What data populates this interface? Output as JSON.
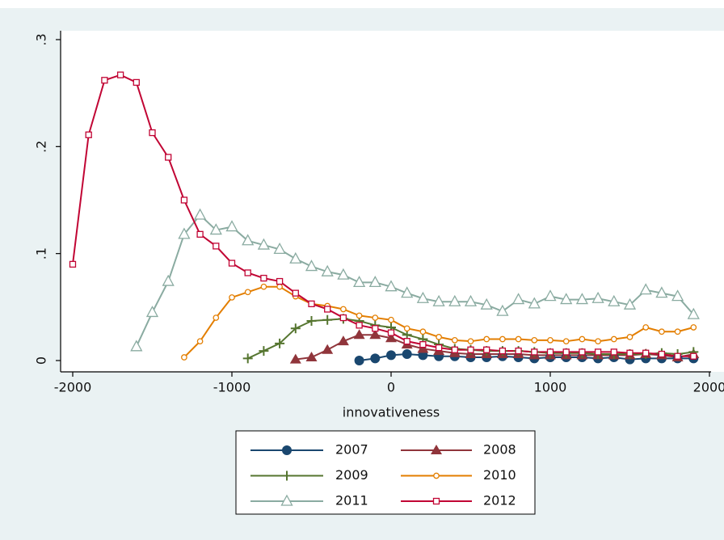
{
  "chart_data": {
    "type": "line",
    "x_label": "innovativeness",
    "xlim": [
      -2000,
      2000
    ],
    "ylim": [
      0,
      0.3
    ],
    "xticks": [
      -2000,
      -1000,
      0,
      1000,
      2000
    ],
    "yticks": [
      0,
      {
        "value": 0.1,
        "label": ".1"
      },
      {
        "value": 0.2,
        "label": ".2"
      },
      {
        "value": 0.3,
        "label": ".3"
      }
    ],
    "grid": false,
    "legend": "bottom",
    "x": [
      -2000,
      -1900,
      -1800,
      -1700,
      -1600,
      -1500,
      -1400,
      -1300,
      -1200,
      -1100,
      -1000,
      -900,
      -800,
      -700,
      -600,
      -500,
      -400,
      -300,
      -200,
      -100,
      0,
      100,
      200,
      300,
      400,
      500,
      600,
      700,
      800,
      900,
      1000,
      1100,
      1200,
      1300,
      1400,
      1500,
      1600,
      1700,
      1800,
      1900
    ],
    "series": [
      {
        "name": "2007",
        "color": "#1a476f",
        "marker": "circle",
        "values": [
          null,
          null,
          null,
          null,
          null,
          null,
          null,
          null,
          null,
          null,
          null,
          null,
          null,
          null,
          null,
          null,
          null,
          null,
          0.0,
          0.002,
          0.005,
          0.006,
          0.005,
          0.004,
          0.004,
          0.003,
          0.003,
          0.004,
          0.003,
          0.002,
          0.003,
          0.003,
          0.003,
          0.002,
          0.003,
          0.001,
          0.002,
          0.002,
          0.002,
          0.002
        ]
      },
      {
        "name": "2008",
        "color": "#90353b",
        "marker": "triangle",
        "values": [
          null,
          null,
          null,
          null,
          null,
          null,
          null,
          null,
          null,
          null,
          null,
          null,
          null,
          null,
          0.001,
          0.003,
          0.01,
          0.018,
          0.024,
          0.024,
          0.021,
          0.015,
          0.011,
          0.009,
          0.007,
          0.006,
          0.006,
          0.006,
          0.006,
          0.005,
          0.005,
          0.005,
          0.005,
          0.005,
          0.005,
          0.005,
          0.006,
          0.005,
          0.003,
          0.006
        ]
      },
      {
        "name": "2009",
        "color": "#55752f",
        "marker": "plus",
        "values": [
          null,
          null,
          null,
          null,
          null,
          null,
          null,
          null,
          null,
          null,
          null,
          0.002,
          0.009,
          0.016,
          0.03,
          0.037,
          0.038,
          0.039,
          0.037,
          0.033,
          0.031,
          0.024,
          0.02,
          0.015,
          0.011,
          0.01,
          0.009,
          0.009,
          0.009,
          0.008,
          0.007,
          0.007,
          0.007,
          0.006,
          0.006,
          0.006,
          0.006,
          0.007,
          0.006,
          0.008
        ]
      },
      {
        "name": "2010",
        "color": "#e37e00",
        "marker": "circle-open",
        "values": [
          null,
          null,
          null,
          null,
          null,
          null,
          null,
          0.003,
          0.018,
          0.04,
          0.059,
          0.064,
          0.069,
          0.069,
          0.06,
          0.053,
          0.051,
          0.048,
          0.042,
          0.04,
          0.038,
          0.03,
          0.027,
          0.022,
          0.019,
          0.018,
          0.02,
          0.02,
          0.02,
          0.019,
          0.019,
          0.018,
          0.02,
          0.018,
          0.02,
          0.022,
          0.031,
          0.027,
          0.027,
          0.031
        ]
      },
      {
        "name": "2011",
        "color": "#8aaba1",
        "marker": "triangle-open",
        "values": [
          null,
          null,
          null,
          null,
          0.013,
          0.045,
          0.074,
          0.118,
          0.136,
          0.122,
          0.125,
          0.112,
          0.108,
          0.104,
          0.095,
          0.088,
          0.083,
          0.08,
          0.073,
          0.073,
          0.069,
          0.063,
          0.058,
          0.055,
          0.055,
          0.055,
          0.052,
          0.046,
          0.057,
          0.053,
          0.06,
          0.057,
          0.057,
          0.058,
          0.055,
          0.052,
          0.066,
          0.063,
          0.06,
          0.043
        ]
      },
      {
        "name": "2012",
        "color": "#c10534",
        "marker": "square-open",
        "values": [
          0.09,
          0.211,
          0.262,
          0.267,
          0.26,
          0.213,
          0.19,
          0.15,
          0.118,
          0.107,
          0.091,
          0.082,
          0.077,
          0.074,
          0.063,
          0.053,
          0.048,
          0.04,
          0.033,
          0.03,
          0.026,
          0.018,
          0.015,
          0.012,
          0.01,
          0.01,
          0.01,
          0.009,
          0.009,
          0.008,
          0.008,
          0.008,
          0.008,
          0.008,
          0.008,
          0.007,
          0.007,
          0.006,
          0.004,
          0.004
        ]
      }
    ]
  }
}
